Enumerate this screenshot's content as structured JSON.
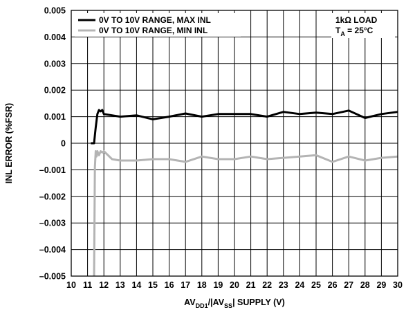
{
  "chart_data": {
    "type": "line",
    "xlabel": {
      "base": "AV",
      "sub1": "DD1",
      "mid": "/|AV",
      "sub2": "SS",
      "tail": "| SUPPLY (V)"
    },
    "ylabel": "INL ERROR (%FSR)",
    "xlim": [
      10,
      30
    ],
    "ylim": [
      -0.005,
      0.005
    ],
    "x_ticks": [
      10,
      11,
      12,
      13,
      14,
      15,
      16,
      17,
      18,
      19,
      20,
      21,
      22,
      23,
      24,
      25,
      26,
      27,
      28,
      29,
      30
    ],
    "y_ticks": [
      {
        "value": 0.005,
        "label": "0.005"
      },
      {
        "value": 0.004,
        "label": "0.004"
      },
      {
        "value": 0.003,
        "label": "0.003"
      },
      {
        "value": 0.002,
        "label": "0.002"
      },
      {
        "value": 0.001,
        "label": "0.001"
      },
      {
        "value": 0,
        "label": "0"
      },
      {
        "value": -0.001,
        "label": "–0.001"
      },
      {
        "value": -0.002,
        "label": "–0.002"
      },
      {
        "value": -0.003,
        "label": "–0.003"
      },
      {
        "value": -0.004,
        "label": "–0.004"
      },
      {
        "value": -0.005,
        "label": "–0.005"
      }
    ],
    "grid": true,
    "legend_position": "top-left",
    "annotation": {
      "line1": "1kΩ LOAD",
      "line2_base": "T",
      "line2_sub": "A",
      "line2_tail": " = 25°C"
    },
    "series": [
      {
        "name": "0V TO 10V RANGE, MAX INL",
        "color": "#000000",
        "points": [
          [
            11.2,
            0.0
          ],
          [
            11.4,
            0.0
          ],
          [
            11.5,
            0.0006
          ],
          [
            11.6,
            0.0011
          ],
          [
            11.7,
            0.00125
          ],
          [
            11.8,
            0.0012
          ],
          [
            11.9,
            0.00125
          ],
          [
            12.0,
            0.0011
          ],
          [
            12.5,
            0.00105
          ],
          [
            13,
            0.001
          ],
          [
            14,
            0.00105
          ],
          [
            15,
            0.0009
          ],
          [
            16,
            0.001
          ],
          [
            17,
            0.00112
          ],
          [
            18,
            0.001
          ],
          [
            19,
            0.0011
          ],
          [
            20,
            0.0011
          ],
          [
            21,
            0.0011
          ],
          [
            22,
            0.001
          ],
          [
            23,
            0.00118
          ],
          [
            24,
            0.0011
          ],
          [
            25,
            0.00115
          ],
          [
            26,
            0.0011
          ],
          [
            27,
            0.00123
          ],
          [
            28,
            0.00095
          ],
          [
            29,
            0.0011
          ],
          [
            30,
            0.00118
          ]
        ]
      },
      {
        "name": "0V TO 10V RANGE, MIN INL",
        "color": "#b4b4b4",
        "points": [
          [
            11.4,
            -0.005
          ],
          [
            11.45,
            -0.0009
          ],
          [
            11.5,
            -0.0003
          ],
          [
            11.55,
            -0.0005
          ],
          [
            11.6,
            -0.0003
          ],
          [
            11.7,
            -0.00045
          ],
          [
            11.8,
            -0.0003
          ],
          [
            11.9,
            -0.00035
          ],
          [
            12.0,
            -0.0003
          ],
          [
            12.5,
            -0.0006
          ],
          [
            13,
            -0.00065
          ],
          [
            14,
            -0.00065
          ],
          [
            15,
            -0.0006
          ],
          [
            16,
            -0.0006
          ],
          [
            17,
            -0.0007
          ],
          [
            18,
            -0.0005
          ],
          [
            19,
            -0.0006
          ],
          [
            20,
            -0.0006
          ],
          [
            21,
            -0.0005
          ],
          [
            22,
            -0.0006
          ],
          [
            23,
            -0.00055
          ],
          [
            24,
            -0.0005
          ],
          [
            25,
            -0.00045
          ],
          [
            26,
            -0.0007
          ],
          [
            27,
            -0.0005
          ],
          [
            28,
            -0.00065
          ],
          [
            29,
            -0.00055
          ],
          [
            30,
            -0.0005
          ]
        ]
      }
    ]
  }
}
